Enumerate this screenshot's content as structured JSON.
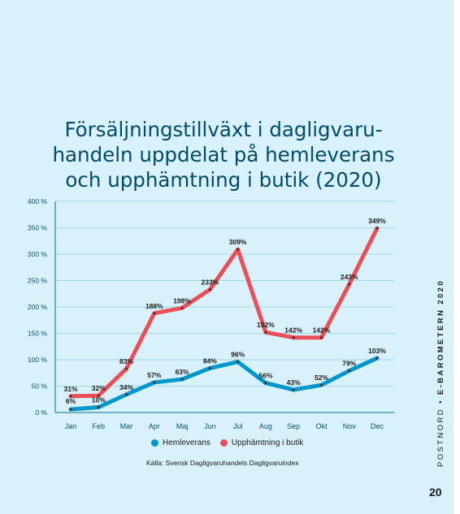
{
  "title_lines": [
    "Försäljningstillväxt i dagligvaru-",
    "handeln uppdelat på hemleverans",
    "och upphämtning i butik (2020)"
  ],
  "side_text": {
    "brand": "POSTNORD",
    "separator": "•",
    "report": "E-BAROMETERN 2020"
  },
  "page_number": "20",
  "source": "Källa: Svensk Dagligvaruhandels Dagligvaruindex",
  "colors": {
    "background": "#d8f1fa",
    "title": "#004b6e",
    "hemleverans": "#0097cc",
    "upphamtning": "#ec4e57",
    "grid": "#9fd9e6"
  },
  "chart_data": {
    "type": "line",
    "categories": [
      "Jan",
      "Feb",
      "Mar",
      "Apr",
      "Maj",
      "Jun",
      "Jul",
      "Aug",
      "Sep",
      "Okt",
      "Nov",
      "Dec"
    ],
    "yticks": [
      "0 %",
      "50 %",
      "100 %",
      "150 %",
      "200 %",
      "250 %",
      "300 %",
      "350 %",
      "400 %"
    ],
    "ylim": [
      0,
      400
    ],
    "grid": true,
    "legend_position": "bottom",
    "series": [
      {
        "name": "Hemleverans",
        "color": "#0097cc",
        "values": [
          6,
          10,
          34,
          57,
          63,
          84,
          96,
          56,
          43,
          52,
          79,
          103
        ],
        "labels": [
          "6%",
          "10%",
          "34%",
          "57%",
          "63%",
          "84%",
          "96%",
          "56%",
          "43%",
          "52%",
          "79%",
          "103%"
        ]
      },
      {
        "name": "Upphämtning i butik",
        "color": "#ec4e57",
        "values": [
          31,
          32,
          83,
          188,
          198,
          233,
          309,
          152,
          142,
          142,
          243,
          349
        ],
        "labels": [
          "31%",
          "32%",
          "83%",
          "188%",
          "198%",
          "233%",
          "309%",
          "152%",
          "142%",
          "142%",
          "243%",
          "349%"
        ]
      }
    ]
  }
}
